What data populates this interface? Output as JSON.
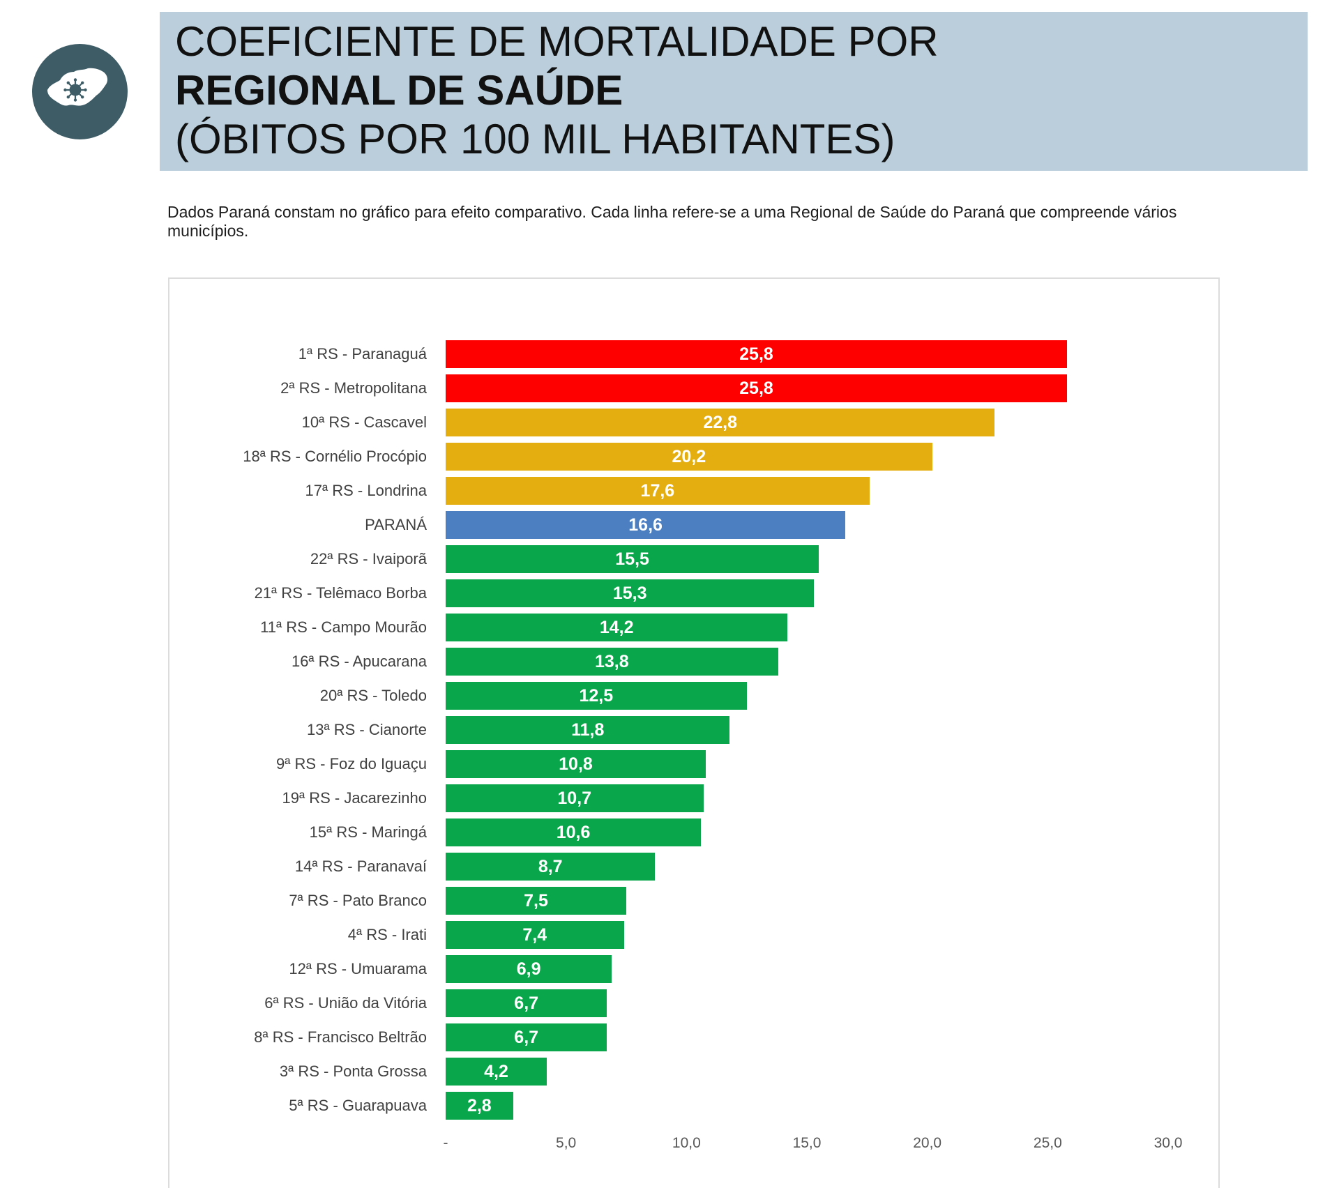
{
  "logo": {
    "icon": "parana-map-virus-icon",
    "circle_color": "#3d5c66",
    "map_color": "#ffffff"
  },
  "header": {
    "title_line1": "COEFICIENTE DE MORTALIDADE POR",
    "title_line2": "REGIONAL DE SAÚDE",
    "title_line3": "(ÓBITOS POR 100 MIL HABITANTES)",
    "background_color": "#bacfdb"
  },
  "description": "Dados Paraná constam no gráfico para efeito comparativo. Cada linha refere-se a uma Regional de Saúde do Paraná que compreende vários municípios.",
  "chart_data": {
    "type": "bar",
    "orientation": "horizontal",
    "categories": [
      "1ª RS - Paranaguá",
      "2ª RS - Metropolitana",
      "10ª RS - Cascavel",
      "18ª RS - Cornélio Procópio",
      "17ª RS - Londrina",
      "PARANÁ",
      "22ª RS - Ivaiporã",
      "21ª RS - Telêmaco Borba",
      "11ª RS - Campo Mourão",
      "16ª RS - Apucarana",
      "20ª RS - Toledo",
      "13ª RS - Cianorte",
      "9ª RS - Foz do Iguaçu",
      "19ª RS - Jacarezinho",
      "15ª RS - Maringá",
      "14ª RS - Paranavaí",
      "7ª RS - Pato Branco",
      "4ª RS - Irati",
      "12ª RS - Umuarama",
      "6ª RS - União da Vitória",
      "8ª RS - Francisco Beltrão",
      "3ª RS - Ponta Grossa",
      "5ª RS - Guarapuava"
    ],
    "values": [
      25.8,
      25.8,
      22.8,
      20.2,
      17.6,
      16.6,
      15.5,
      15.3,
      14.2,
      13.8,
      12.5,
      11.8,
      10.8,
      10.7,
      10.6,
      8.7,
      7.5,
      7.4,
      6.9,
      6.7,
      6.7,
      4.2,
      2.8
    ],
    "value_labels": [
      "25,8",
      "25,8",
      "22,8",
      "20,2",
      "17,6",
      "16,6",
      "15,5",
      "15,3",
      "14,2",
      "13,8",
      "12,5",
      "11,8",
      "10,8",
      "10,7",
      "10,6",
      "8,7",
      "7,5",
      "7,4",
      "6,9",
      "6,7",
      "6,7",
      "4,2",
      "2,8"
    ],
    "bar_colors": [
      "#fe0000",
      "#fe0000",
      "#e5ae10",
      "#e5ae10",
      "#e5ae10",
      "#4b7fc2",
      "#0aa64b",
      "#0aa64b",
      "#0aa64b",
      "#0aa64b",
      "#0aa64b",
      "#0aa64b",
      "#0aa64b",
      "#0aa64b",
      "#0aa64b",
      "#0aa64b",
      "#0aa64b",
      "#0aa64b",
      "#0aa64b",
      "#0aa64b",
      "#0aa64b",
      "#0aa64b",
      "#0aa64b"
    ],
    "xlim": [
      0,
      30
    ],
    "x_ticks": [
      0,
      5,
      10,
      15,
      20,
      25,
      30
    ],
    "x_tick_labels": [
      "-",
      "5,0",
      "10,0",
      "15,0",
      "20,0",
      "25,0",
      "30,0"
    ],
    "grid": false,
    "legend": "none"
  }
}
